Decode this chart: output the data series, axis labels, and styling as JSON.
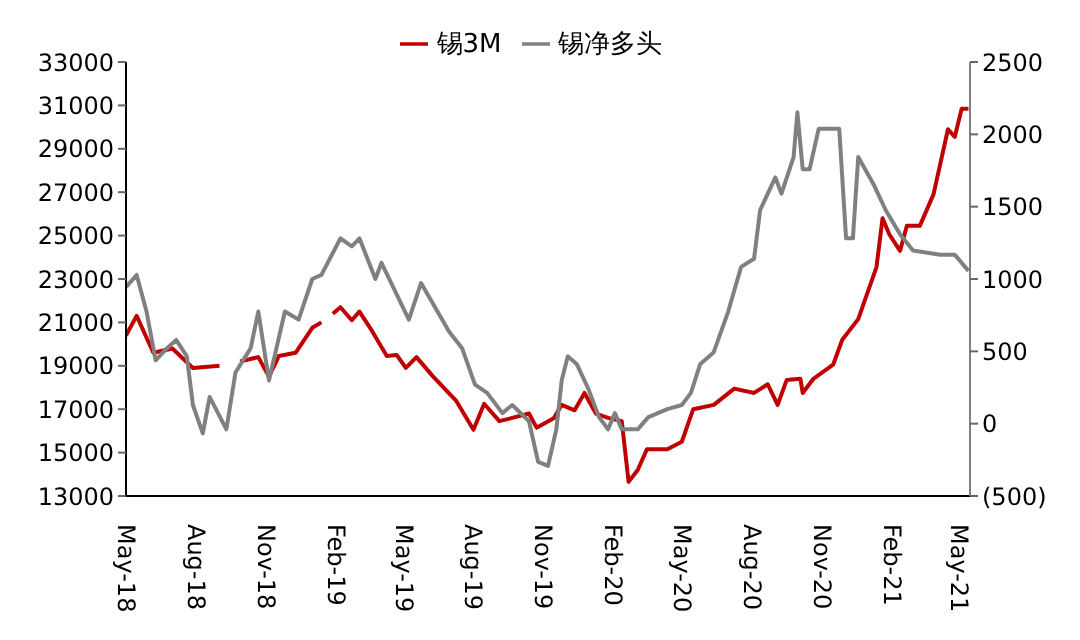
{
  "chart_data": {
    "type": "line",
    "legend": "top",
    "marker": "none",
    "xlim": [
      "2018-05-01",
      "2021-05-15"
    ],
    "xticks": [
      {
        "value": "2018-05-01",
        "label": "May-18"
      },
      {
        "value": "2018-08-01",
        "label": "Aug-18"
      },
      {
        "value": "2018-11-01",
        "label": "Nov-18"
      },
      {
        "value": "2019-02-01",
        "label": "Feb-19"
      },
      {
        "value": "2019-05-01",
        "label": "May-19"
      },
      {
        "value": "2019-08-01",
        "label": "Aug-19"
      },
      {
        "value": "2019-11-01",
        "label": "Nov-19"
      },
      {
        "value": "2020-02-01",
        "label": "Feb-20"
      },
      {
        "value": "2020-05-01",
        "label": "May-20"
      },
      {
        "value": "2020-08-01",
        "label": "Aug-20"
      },
      {
        "value": "2020-11-01",
        "label": "Nov-20"
      },
      {
        "value": "2021-02-01",
        "label": "Feb-21"
      },
      {
        "value": "2021-05-01",
        "label": "May-21"
      }
    ],
    "ylim": [
      13000,
      33000
    ],
    "yticks": [
      13000,
      15000,
      17000,
      19000,
      21000,
      23000,
      25000,
      27000,
      29000,
      31000,
      33000
    ],
    "y2lim": [
      -500,
      2500
    ],
    "y2ticks": [
      {
        "value": -500,
        "label": "(500)"
      },
      0,
      500,
      1000,
      1500,
      2000,
      2500
    ],
    "series": [
      {
        "name": "锡3M",
        "color": "#c00000",
        "axis": "y",
        "x": [
          "2018-05-01",
          "2018-05-15",
          "2018-06-06",
          "2018-07-01",
          "2018-07-28",
          "2018-09-01",
          "2018-09-15",
          "2018-09-28",
          "2018-10-22",
          "2018-11-05",
          "2018-11-18",
          "2018-12-10",
          "2019-01-01",
          "2019-01-13",
          "2019-01-20",
          "2019-01-28",
          "2019-02-07",
          "2019-02-22",
          "2019-03-04",
          "2019-03-18",
          "2019-04-09",
          "2019-04-22",
          "2019-05-04",
          "2019-05-18",
          "2019-06-09",
          "2019-07-09",
          "2019-08-01",
          "2019-08-15",
          "2019-09-04",
          "2019-09-21",
          "2019-10-13",
          "2019-10-23",
          "2019-11-15",
          "2019-11-25",
          "2019-12-12",
          "2019-12-25",
          "2020-01-09",
          "2020-01-25",
          "2020-02-12",
          "2020-02-21",
          "2020-03-04",
          "2020-03-16",
          "2020-04-12",
          "2020-05-01",
          "2020-05-16",
          "2020-06-12",
          "2020-07-09",
          "2020-08-04",
          "2020-08-22",
          "2020-09-04",
          "2020-09-16",
          "2020-10-04",
          "2020-10-07",
          "2020-10-21",
          "2020-11-16",
          "2020-11-28",
          "2020-12-19",
          "2021-01-12",
          "2021-01-20",
          "2021-01-29",
          "2021-02-12",
          "2021-02-21",
          "2021-03-10",
          "2021-03-28",
          "2021-04-16",
          "2021-04-25",
          "2021-05-04",
          "2021-05-13"
        ],
        "values": [
          20400,
          21300,
          19600,
          19800,
          18900,
          19000,
          null,
          19200,
          19400,
          18500,
          19450,
          19600,
          20750,
          21000,
          null,
          21400,
          21700,
          21100,
          21500,
          20750,
          19450,
          19500,
          18900,
          19400,
          18500,
          17400,
          16050,
          17250,
          16450,
          16600,
          16800,
          16150,
          16600,
          17200,
          16950,
          17750,
          16800,
          16600,
          16450,
          13650,
          14200,
          15150,
          15150,
          15500,
          17000,
          17200,
          17950,
          17750,
          18150,
          17200,
          18350,
          18400,
          17750,
          18400,
          19050,
          20200,
          21150,
          23550,
          25800,
          25050,
          24300,
          25450,
          25450,
          26900,
          29900,
          29550,
          30850,
          30850
        ]
      },
      {
        "name": "锡净多头",
        "color": "#808080",
        "axis": "y2",
        "x": [
          "2018-05-01",
          "2018-05-15",
          "2018-05-28",
          "2018-06-09",
          "2018-06-24",
          "2018-07-06",
          "2018-07-20",
          "2018-07-28",
          "2018-08-10",
          "2018-08-19",
          "2018-09-10",
          "2018-09-22",
          "2018-10-12",
          "2018-10-22",
          "2018-11-05",
          "2018-11-26",
          "2018-12-14",
          "2019-01-01",
          "2019-01-13",
          "2019-02-07",
          "2019-02-22",
          "2019-03-04",
          "2019-03-25",
          "2019-04-02",
          "2019-05-08",
          "2019-05-24",
          "2019-06-30",
          "2019-07-17",
          "2019-08-03",
          "2019-08-19",
          "2019-09-08",
          "2019-09-21",
          "2019-10-13",
          "2019-10-25",
          "2019-11-07",
          "2019-11-18",
          "2019-11-25",
          "2019-12-03",
          "2019-12-15",
          "2019-12-30",
          "2020-01-13",
          "2020-01-25",
          "2020-02-03",
          "2020-02-12",
          "2020-03-04",
          "2020-03-18",
          "2020-04-12",
          "2020-05-01",
          "2020-05-13",
          "2020-05-25",
          "2020-06-12",
          "2020-07-01",
          "2020-07-18",
          "2020-08-04",
          "2020-08-12",
          "2020-09-01",
          "2020-09-09",
          "2020-09-25",
          "2020-09-30",
          "2020-10-07",
          "2020-10-16",
          "2020-10-28",
          "2020-11-24",
          "2020-12-03",
          "2020-12-12",
          "2020-12-19",
          "2021-01-09",
          "2021-01-24",
          "2021-02-12",
          "2021-03-01",
          "2021-04-06",
          "2021-04-25",
          "2021-05-13"
        ],
        "values": [
          944,
          1028,
          775,
          438,
          522,
          579,
          466,
          129,
          -67,
          185,
          -39,
          354,
          522,
          775,
          298,
          775,
          719,
          1000,
          1028,
          1281,
          1225,
          1281,
          1000,
          1112,
          719,
          972,
          635,
          522,
          270,
          213,
          73,
          129,
          17,
          -264,
          -292,
          -39,
          298,
          466,
          410,
          242,
          45,
          -39,
          73,
          -39,
          -39,
          45,
          101,
          129,
          213,
          410,
          494,
          775,
          1084,
          1140,
          1477,
          1702,
          1590,
          1843,
          2152,
          1758,
          1758,
          2039,
          2039,
          1281,
          1281,
          1843,
          1646,
          1477,
          1309,
          1197,
          1168,
          1168,
          1056
        ]
      }
    ]
  }
}
